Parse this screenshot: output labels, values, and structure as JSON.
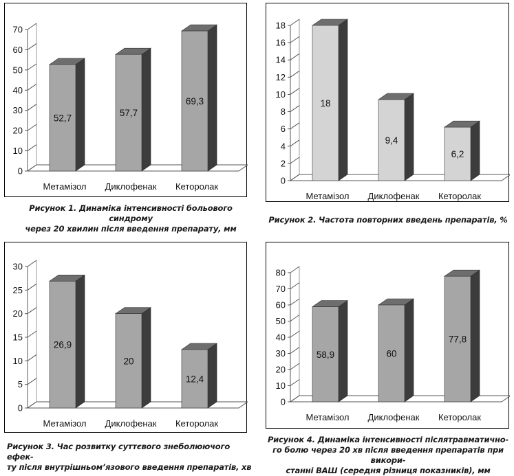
{
  "chart_data": [
    {
      "type": "bar",
      "title": "",
      "categories": [
        "Метамізол",
        "Диклофенак",
        "Кеторолак"
      ],
      "values": [
        52.7,
        57.7,
        69.3
      ],
      "data_labels": [
        "52,7",
        "57,7",
        "69,3"
      ],
      "ylim": [
        0,
        70
      ],
      "yticks": [
        "0",
        "10",
        "20",
        "30",
        "40",
        "50",
        "60",
        "70"
      ],
      "bar_color": "#a6a6a6",
      "grid": false,
      "caption": [
        "Рисунок 1. Динаміка інтенсивності больового синдрому",
        "через 20 хвилин після введення препарату, мм"
      ]
    },
    {
      "type": "bar",
      "title": "",
      "categories": [
        "Метамізол",
        "Диклофенак",
        "Кеторолак"
      ],
      "values": [
        18,
        9.4,
        6.2
      ],
      "data_labels": [
        "18",
        "9,4",
        "6,2"
      ],
      "ylim": [
        0,
        18
      ],
      "yticks": [
        "0",
        "2",
        "4",
        "6",
        "8",
        "10",
        "12",
        "14",
        "16",
        "18"
      ],
      "bar_color": "#d4d4d4",
      "grid": false,
      "caption": [
        "Рисунок 2. Частота повторних введень препаратів, %"
      ]
    },
    {
      "type": "bar",
      "title": "",
      "categories": [
        "Метамізол",
        "Диклофенак",
        "Кеторолак"
      ],
      "values": [
        26.9,
        20,
        12.4
      ],
      "data_labels": [
        "26,9",
        "20",
        "12,4"
      ],
      "ylim": [
        0,
        30
      ],
      "yticks": [
        "0",
        "5",
        "10",
        "15",
        "20",
        "25",
        "30"
      ],
      "bar_color": "#a6a6a6",
      "grid": false,
      "caption": [
        "Рисунок 3. Час розвитку суттєвого знеболюючого ефек-",
        "ту після внутрішньом’язового введення препаратів, хв"
      ]
    },
    {
      "type": "bar",
      "title": "",
      "categories": [
        "Метамізол",
        "Диклофенак",
        "Кеторолак"
      ],
      "values": [
        58.9,
        60,
        77.8
      ],
      "data_labels": [
        "58,9",
        "60",
        "77,8"
      ],
      "ylim": [
        0,
        80
      ],
      "yticks": [
        "0",
        "10",
        "20",
        "30",
        "40",
        "50",
        "60",
        "70",
        "80"
      ],
      "bar_color": "#a6a6a6",
      "grid": false,
      "caption": [
        "Рисунок  4. Динаміка інтенсивності післятравматично-",
        "го болю через 20 хв після введення препаратів при викори-",
        "станні ВАШ (середня різниця показників), мм"
      ]
    }
  ]
}
